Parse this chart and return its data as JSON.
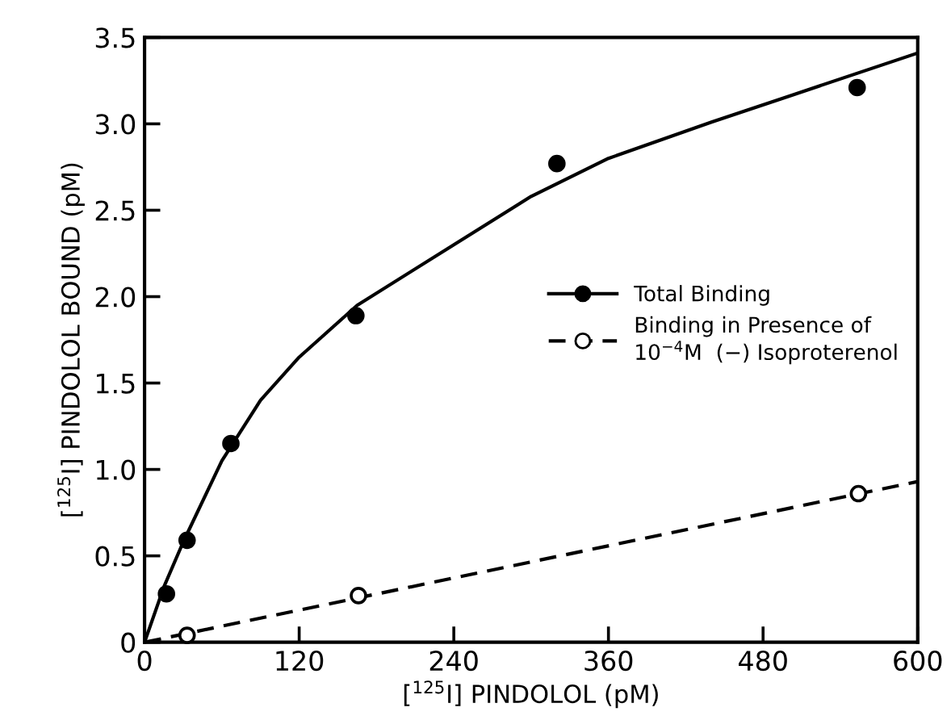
{
  "chart_data": {
    "type": "scatter",
    "xlabel": "[$^{125}$I] PINDOLOL (pM)",
    "ylabel": "[$^{125}$I] PINDOLOL BOUND (pM)",
    "xlim": [
      0,
      600
    ],
    "xticks": [
      0,
      120,
      240,
      360,
      480,
      600
    ],
    "ylim": [
      0,
      3.5
    ],
    "yticks": [
      0,
      {
        "value": 0.5,
        "label": "0.5"
      },
      {
        "value": 1.0,
        "label": "1.0"
      },
      {
        "value": 1.5,
        "label": "1.5"
      },
      {
        "value": 2.0,
        "label": "2.0"
      },
      {
        "value": 2.5,
        "label": "2.5"
      },
      {
        "value": 3.0,
        "label": "3.0"
      },
      {
        "value": 3.5,
        "label": "3.5"
      }
    ],
    "grid": false,
    "legend": "right",
    "series": [
      {
        "type": "line",
        "color": "#000000",
        "line_style": "solid",
        "marker": "none",
        "x": [
          0,
          15,
          30,
          60,
          90,
          120,
          165,
          240,
          300,
          360,
          440,
          500,
          600
        ],
        "values": [
          0,
          0.32,
          0.58,
          1.05,
          1.4,
          1.65,
          1.95,
          2.3,
          2.58,
          2.8,
          3.01,
          3.16,
          3.41
        ]
      },
      {
        "name": "Total Binding",
        "color": "#000000",
        "marker": "circle",
        "line_style": "solid",
        "x": [
          17,
          33,
          67,
          164,
          320,
          553
        ],
        "values": [
          0.28,
          0.59,
          1.15,
          1.89,
          2.77,
          3.21
        ]
      },
      {
        "type": "line",
        "color": "#000000",
        "line_style": "dashed",
        "marker": "none",
        "x": [
          0,
          600
        ],
        "values": [
          0,
          0.93
        ]
      },
      {
        "name": "Binding in Presence of\n10$^{−4}$M  (−) Isoproterenol",
        "color": "#000000",
        "marker": "circle",
        "line_style": "dashed",
        "x": [
          33,
          166,
          554
        ],
        "values": [
          0.04,
          0.27,
          0.86
        ]
      }
    ]
  }
}
